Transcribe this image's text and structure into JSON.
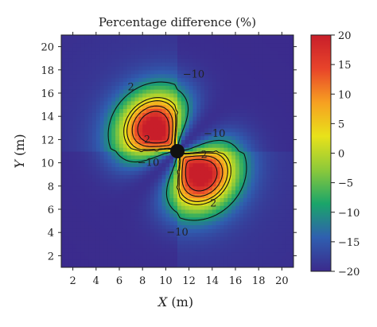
{
  "chart_data": {
    "type": "heatmap",
    "title": "Percentage difference (%)",
    "xlabel": "X",
    "xunit": "(m)",
    "ylabel": "Y",
    "yunit": "(m)",
    "xlim": [
      1,
      21
    ],
    "ylim": [
      1,
      21
    ],
    "xticks": [
      2,
      4,
      6,
      8,
      10,
      12,
      14,
      16,
      18,
      20
    ],
    "yticks": [
      2,
      4,
      6,
      8,
      10,
      12,
      14,
      16,
      18,
      20
    ],
    "colorbar": {
      "range": [
        -20,
        20
      ],
      "ticks": [
        20,
        15,
        10,
        5,
        0,
        -5,
        -10,
        -15,
        -20
      ],
      "tick_labels": [
        "20",
        "15",
        "10",
        "5",
        "0",
        "−5",
        "−10",
        "−15",
        "−20"
      ],
      "colors": [
        "#3b2a8c",
        "#2f5fb0",
        "#1aa56a",
        "#8cc93a",
        "#e8e21a",
        "#f7a021",
        "#e8442a",
        "#c81e2a"
      ]
    },
    "source_marker": {
      "x": 11,
      "y": 11,
      "color": "#111111"
    },
    "field": {
      "center": [
        11,
        11
      ],
      "lobes": [
        {
          "x": 9,
          "y": 13,
          "peak": 20
        },
        {
          "x": 13,
          "y": 9,
          "peak": 20
        }
      ],
      "background": -20
    },
    "contour_levels": [
      -10,
      2,
      5,
      10,
      15
    ],
    "contour_labels": [
      {
        "text": "2",
        "x": 7.0,
        "y": 16.5
      },
      {
        "text": "−10",
        "x": 12.4,
        "y": 17.6
      },
      {
        "text": "−10",
        "x": 14.2,
        "y": 12.5
      },
      {
        "text": "−10",
        "x": 8.5,
        "y": 10.0
      },
      {
        "text": "2",
        "x": 8.4,
        "y": 12.0
      },
      {
        "text": "2",
        "x": 13.3,
        "y": 10.7
      },
      {
        "text": "2",
        "x": 14.1,
        "y": 6.5
      },
      {
        "text": "−10",
        "x": 11.0,
        "y": 4.0
      }
    ]
  }
}
